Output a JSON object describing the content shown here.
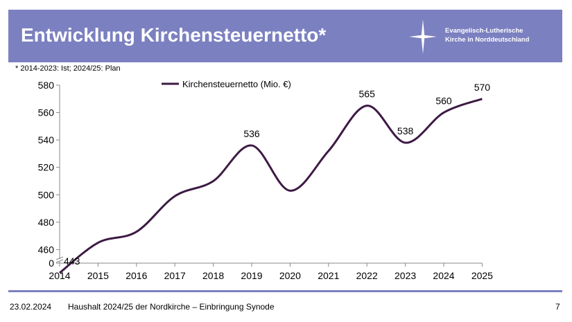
{
  "header": {
    "title": "Entwicklung Kirchensteuernetto*",
    "background_color": "#7b80c0",
    "logo": {
      "line1": "Evangelisch-Lutherische",
      "line2": "Kirche in Norddeutschland",
      "icon": "cross-star-icon"
    }
  },
  "footnote": "* 2014-2023: Ist;  2024/25: Plan",
  "chart_data": {
    "type": "line",
    "title": "",
    "xlabel": "",
    "ylabel": "",
    "x": [
      "2014",
      "2015",
      "2016",
      "2017",
      "2018",
      "2019",
      "2020",
      "2021",
      "2022",
      "2023",
      "2024",
      "2025"
    ],
    "series": [
      {
        "name": "Kirchensteuernetto (Mio. €)",
        "values": [
          443,
          465,
          473,
          499,
          510,
          536,
          503,
          532,
          565,
          538,
          560,
          570
        ],
        "color": "#3d1a44"
      }
    ],
    "y_ticks": [
      0,
      460,
      480,
      500,
      520,
      540,
      560,
      580
    ],
    "ylim": [
      440,
      580
    ],
    "axis_break": true,
    "labeled_points": [
      {
        "x": "2014",
        "label": "443"
      },
      {
        "x": "2019",
        "label": "536"
      },
      {
        "x": "2022",
        "label": "565"
      },
      {
        "x": "2023",
        "label": "538"
      },
      {
        "x": "2024",
        "label": "560"
      },
      {
        "x": "2025",
        "label": "570"
      }
    ],
    "legend_position": "top-center",
    "grid": false
  },
  "footer": {
    "date": "23.02.2024",
    "description": "Haushalt 2024/25 der Nordkirche – Einbringung Synode",
    "page": "7",
    "line_color": "#7b80c0"
  }
}
